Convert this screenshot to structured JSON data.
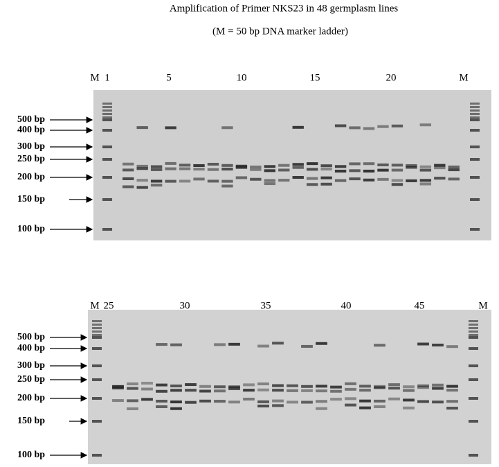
{
  "header": {
    "title": "Amplification of Primer NKS23 in 48  germplasm lines",
    "subtitle": "(M = 50 bp DNA marker ladder)"
  },
  "panels": [
    {
      "lane_labels": [
        "M",
        "1",
        "5",
        "10",
        "15",
        "20",
        "M"
      ],
      "size_labels": [
        "500 bp",
        "400 bp",
        "300 bp",
        "250 bp",
        "200 bp",
        "150 bp",
        "100 bp"
      ]
    },
    {
      "lane_labels": [
        "M",
        "25",
        "30",
        "35",
        "40",
        "45",
        "M"
      ],
      "size_labels": [
        "500 bp",
        "400 bp",
        "300 bp",
        "250 bp",
        "200 bp",
        "150 bp",
        "100 bp"
      ]
    }
  ]
}
